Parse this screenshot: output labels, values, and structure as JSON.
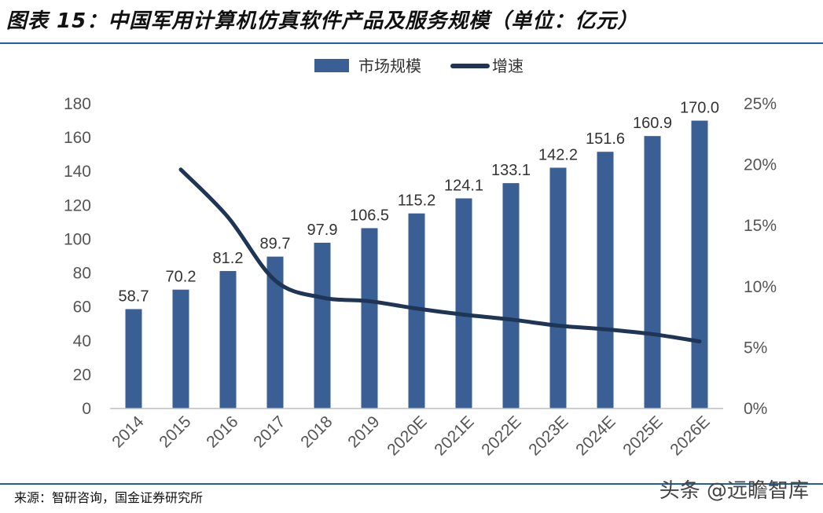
{
  "header": {
    "title": "图表 15：中国军用计算机仿真软件产品及服务规模（单位：亿元）"
  },
  "footer": {
    "source": "来源：智研咨询，国金证券研究所",
    "watermark": "头条 @远瞻智库"
  },
  "colors": {
    "bar": "#3a5f94",
    "line": "#1f3555",
    "rule": "#1f5ea8",
    "axis": "#bfbfbf"
  },
  "chart_data": {
    "type": "bar",
    "title": "",
    "xlabel": "",
    "ylabel": "",
    "categories": [
      "2014",
      "2015",
      "2016",
      "2017",
      "2018",
      "2019",
      "2020E",
      "2021E",
      "2022E",
      "2023E",
      "2024E",
      "2025E",
      "2026E"
    ],
    "series": [
      {
        "name": "市场规模",
        "type": "bar",
        "axis": "left",
        "values": [
          58.7,
          70.2,
          81.2,
          89.7,
          97.9,
          106.5,
          115.2,
          124.1,
          133.1,
          142.2,
          151.6,
          160.9,
          170.0
        ],
        "labels": [
          "58.7",
          "70.2",
          "81.2",
          "89.7",
          "97.9",
          "106.5",
          "115.2",
          "124.1",
          "133.1",
          "142.2",
          "151.6",
          "160.9",
          "170.0"
        ]
      },
      {
        "name": "增速",
        "type": "line",
        "axis": "right",
        "values": [
          null,
          19.6,
          15.7,
          10.5,
          9.1,
          8.8,
          8.2,
          7.7,
          7.3,
          6.8,
          6.5,
          6.1,
          5.5
        ]
      }
    ],
    "ylim": [
      0,
      180
    ],
    "yticks": [
      "0",
      "20",
      "40",
      "60",
      "80",
      "100",
      "120",
      "140",
      "160",
      "180"
    ],
    "y2lim": [
      0,
      25
    ],
    "y2ticks": [
      "0%",
      "5%",
      "10%",
      "15%",
      "20%",
      "25%"
    ],
    "grid": false,
    "legend_position": "top-center"
  }
}
